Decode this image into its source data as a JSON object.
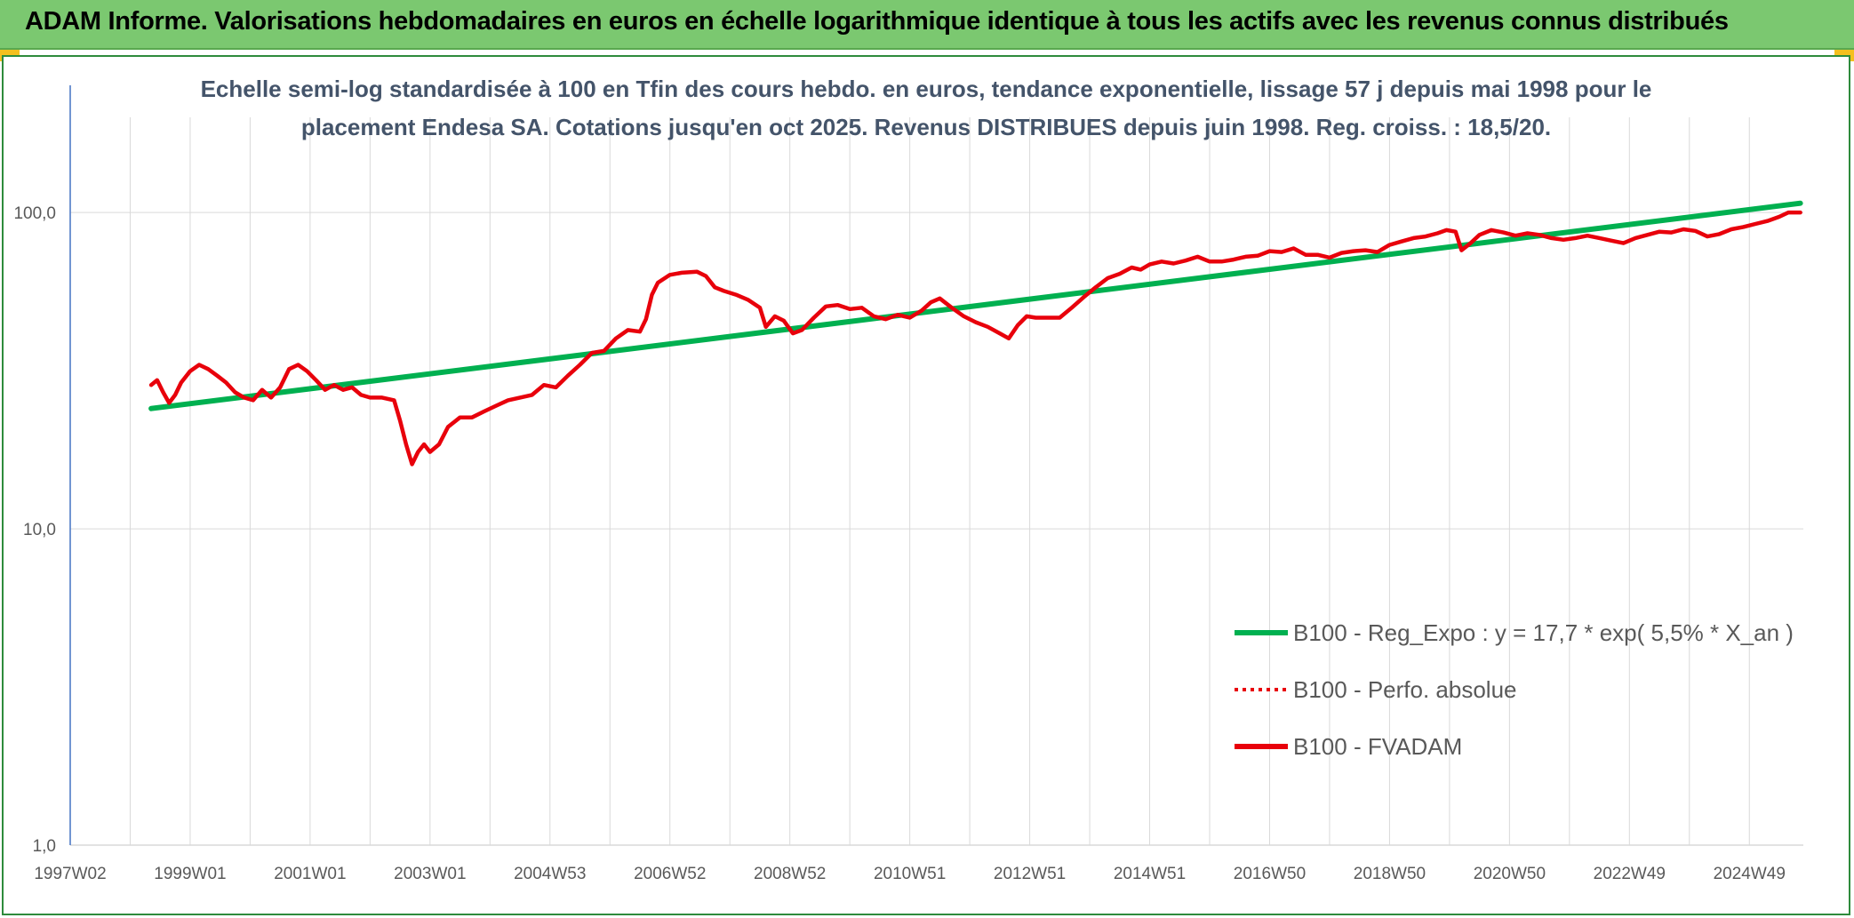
{
  "banner": {
    "title": "ADAM Informe. Valorisations hebdomadaires en euros en échelle logarithmique identique à tous les actifs avec les revenus connus distribués"
  },
  "colors": {
    "banner_bg": "#7bc870",
    "frame_border": "#2e8b3c",
    "corner_accent": "#f4c01e",
    "trend_line": "#00b050",
    "fvadam_line": "#e8000b",
    "perfo_line": "#e8000b",
    "gridline": "#d9d9d9",
    "y_axis": "#4472c4"
  },
  "chart_data": {
    "type": "line",
    "title_lines": [
      "Echelle semi-log standardisée à 100 en Tfin des cours hebdo. en euros, tendance exponentielle, lissage 57 j depuis mai 1998 pour le",
      "placement Endesa SA. Cotations jusqu'en oct 2025. Revenus DISTRIBUES depuis juin 1998. Reg. croiss. : 18,5/20."
    ],
    "y_scale": "log",
    "ylim": [
      1,
      200
    ],
    "y_ticks": [
      {
        "value": 1,
        "label": "1,0"
      },
      {
        "value": 10,
        "label": "10,0"
      },
      {
        "value": 100,
        "label": "100,0"
      }
    ],
    "x_unit": "year",
    "xlim": [
      1997.0,
      2025.9
    ],
    "x_ticks": [
      {
        "value": 1997.0,
        "label": "1997W02"
      },
      {
        "value": 1999.0,
        "label": "1999W01"
      },
      {
        "value": 2001.0,
        "label": "2001W01"
      },
      {
        "value": 2003.0,
        "label": "2003W01"
      },
      {
        "value": 2005.0,
        "label": "2004W53"
      },
      {
        "value": 2007.0,
        "label": "2006W52"
      },
      {
        "value": 2009.0,
        "label": "2008W52"
      },
      {
        "value": 2011.0,
        "label": "2010W51"
      },
      {
        "value": 2013.0,
        "label": "2012W51"
      },
      {
        "value": 2015.0,
        "label": "2014W51"
      },
      {
        "value": 2017.0,
        "label": "2016W50"
      },
      {
        "value": 2019.0,
        "label": "2018W50"
      },
      {
        "value": 2021.0,
        "label": "2020W50"
      },
      {
        "value": 2023.0,
        "label": "2022W49"
      },
      {
        "value": 2025.0,
        "label": "2024W49"
      }
    ],
    "vertical_grid": true,
    "horizontal_grid": true,
    "legend_position": "bottom-right",
    "series": [
      {
        "name": "B100 - Reg_Expo : y = 17,7 * exp( 5,5% *  X_an )",
        "style": "solid-thick",
        "color": "#00b050",
        "points": [
          [
            1998.35,
            24.0
          ],
          [
            2025.85,
            107.0
          ]
        ]
      },
      {
        "name": "B100 - Perfo. absolue",
        "style": "dotted",
        "color": "#e8000b",
        "points": []
      },
      {
        "name": "B100 - FVADAM",
        "style": "solid",
        "color": "#e8000b",
        "points": [
          [
            1998.35,
            28.5
          ],
          [
            1998.45,
            29.5
          ],
          [
            1998.55,
            27.0
          ],
          [
            1998.65,
            25.0
          ],
          [
            1998.75,
            26.5
          ],
          [
            1998.85,
            29.0
          ],
          [
            1999.0,
            31.5
          ],
          [
            1999.15,
            33.0
          ],
          [
            1999.3,
            32.0
          ],
          [
            1999.45,
            30.5
          ],
          [
            1999.6,
            29.0
          ],
          [
            1999.75,
            27.0
          ],
          [
            1999.9,
            26.0
          ],
          [
            2000.05,
            25.5
          ],
          [
            2000.2,
            27.5
          ],
          [
            2000.35,
            26.0
          ],
          [
            2000.5,
            28.0
          ],
          [
            2000.65,
            32.0
          ],
          [
            2000.8,
            33.0
          ],
          [
            2000.95,
            31.5
          ],
          [
            2001.1,
            29.5
          ],
          [
            2001.25,
            27.5
          ],
          [
            2001.4,
            28.5
          ],
          [
            2001.55,
            27.5
          ],
          [
            2001.7,
            28.0
          ],
          [
            2001.85,
            26.5
          ],
          [
            2002.0,
            26.0
          ],
          [
            2002.2,
            26.0
          ],
          [
            2002.4,
            25.5
          ],
          [
            2002.5,
            22.0
          ],
          [
            2002.6,
            18.5
          ],
          [
            2002.7,
            16.0
          ],
          [
            2002.8,
            17.5
          ],
          [
            2002.9,
            18.5
          ],
          [
            2003.0,
            17.5
          ],
          [
            2003.15,
            18.5
          ],
          [
            2003.3,
            21.0
          ],
          [
            2003.5,
            22.5
          ],
          [
            2003.7,
            22.5
          ],
          [
            2003.9,
            23.5
          ],
          [
            2004.1,
            24.5
          ],
          [
            2004.3,
            25.5
          ],
          [
            2004.5,
            26.0
          ],
          [
            2004.7,
            26.5
          ],
          [
            2004.9,
            28.5
          ],
          [
            2005.1,
            28.0
          ],
          [
            2005.3,
            30.5
          ],
          [
            2005.5,
            33.0
          ],
          [
            2005.7,
            36.0
          ],
          [
            2005.9,
            36.5
          ],
          [
            2006.1,
            40.0
          ],
          [
            2006.3,
            42.5
          ],
          [
            2006.5,
            42.0
          ],
          [
            2006.6,
            46.0
          ],
          [
            2006.7,
            55.0
          ],
          [
            2006.8,
            60.0
          ],
          [
            2007.0,
            63.5
          ],
          [
            2007.2,
            64.5
          ],
          [
            2007.45,
            65.0
          ],
          [
            2007.6,
            63.0
          ],
          [
            2007.75,
            58.0
          ],
          [
            2007.9,
            56.5
          ],
          [
            2008.1,
            55.0
          ],
          [
            2008.3,
            53.0
          ],
          [
            2008.5,
            50.0
          ],
          [
            2008.6,
            43.5
          ],
          [
            2008.75,
            47.0
          ],
          [
            2008.9,
            45.5
          ],
          [
            2009.05,
            41.5
          ],
          [
            2009.2,
            42.5
          ],
          [
            2009.4,
            46.5
          ],
          [
            2009.6,
            50.5
          ],
          [
            2009.8,
            51.0
          ],
          [
            2010.0,
            49.5
          ],
          [
            2010.2,
            50.0
          ],
          [
            2010.4,
            47.0
          ],
          [
            2010.6,
            46.0
          ],
          [
            2010.8,
            47.5
          ],
          [
            2011.0,
            46.5
          ],
          [
            2011.2,
            49.0
          ],
          [
            2011.35,
            52.0
          ],
          [
            2011.5,
            53.5
          ],
          [
            2011.7,
            50.0
          ],
          [
            2011.9,
            47.0
          ],
          [
            2012.1,
            45.0
          ],
          [
            2012.3,
            43.5
          ],
          [
            2012.5,
            41.5
          ],
          [
            2012.65,
            40.0
          ],
          [
            2012.8,
            44.0
          ],
          [
            2012.95,
            47.0
          ],
          [
            2013.1,
            46.5
          ],
          [
            2013.3,
            46.5
          ],
          [
            2013.5,
            46.5
          ],
          [
            2013.7,
            50.0
          ],
          [
            2013.9,
            54.0
          ],
          [
            2014.1,
            58.0
          ],
          [
            2014.3,
            62.0
          ],
          [
            2014.5,
            64.0
          ],
          [
            2014.7,
            67.0
          ],
          [
            2014.85,
            66.0
          ],
          [
            2015.0,
            68.5
          ],
          [
            2015.2,
            70.0
          ],
          [
            2015.4,
            69.0
          ],
          [
            2015.6,
            70.5
          ],
          [
            2015.8,
            72.5
          ],
          [
            2016.0,
            70.0
          ],
          [
            2016.2,
            70.0
          ],
          [
            2016.4,
            71.0
          ],
          [
            2016.6,
            72.5
          ],
          [
            2016.8,
            73.0
          ],
          [
            2017.0,
            75.5
          ],
          [
            2017.2,
            75.0
          ],
          [
            2017.4,
            77.0
          ],
          [
            2017.6,
            73.5
          ],
          [
            2017.8,
            73.5
          ],
          [
            2018.0,
            72.0
          ],
          [
            2018.2,
            74.5
          ],
          [
            2018.4,
            75.5
          ],
          [
            2018.6,
            76.0
          ],
          [
            2018.8,
            75.0
          ],
          [
            2019.0,
            79.0
          ],
          [
            2019.2,
            81.0
          ],
          [
            2019.4,
            83.0
          ],
          [
            2019.6,
            84.0
          ],
          [
            2019.8,
            86.0
          ],
          [
            2019.95,
            88.0
          ],
          [
            2020.1,
            87.0
          ],
          [
            2020.2,
            76.0
          ],
          [
            2020.35,
            80.0
          ],
          [
            2020.5,
            85.0
          ],
          [
            2020.7,
            88.0
          ],
          [
            2020.9,
            86.5
          ],
          [
            2021.1,
            84.5
          ],
          [
            2021.3,
            86.0
          ],
          [
            2021.5,
            85.0
          ],
          [
            2021.7,
            83.0
          ],
          [
            2021.9,
            82.0
          ],
          [
            2022.1,
            83.0
          ],
          [
            2022.3,
            84.5
          ],
          [
            2022.5,
            83.0
          ],
          [
            2022.7,
            81.5
          ],
          [
            2022.9,
            80.0
          ],
          [
            2023.1,
            83.0
          ],
          [
            2023.3,
            85.0
          ],
          [
            2023.5,
            87.0
          ],
          [
            2023.7,
            86.5
          ],
          [
            2023.9,
            88.5
          ],
          [
            2024.1,
            87.5
          ],
          [
            2024.3,
            84.0
          ],
          [
            2024.5,
            85.5
          ],
          [
            2024.7,
            88.5
          ],
          [
            2024.9,
            90.0
          ],
          [
            2025.1,
            92.0
          ],
          [
            2025.3,
            94.0
          ],
          [
            2025.5,
            97.0
          ],
          [
            2025.65,
            100.0
          ],
          [
            2025.85,
            100.0
          ]
        ]
      }
    ]
  }
}
